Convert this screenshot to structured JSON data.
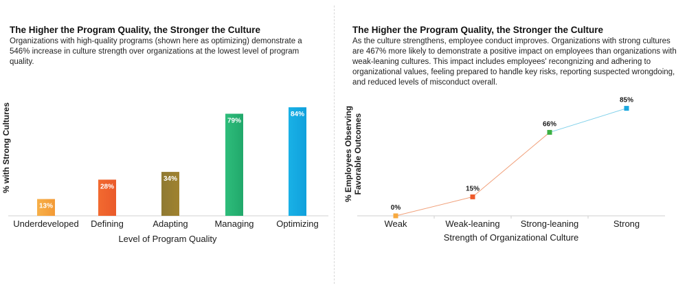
{
  "panels": {
    "left": {
      "title": "The Higher the Program Quality, the Stronger the Culture",
      "description": "Organizations with high-quality programs (shown here as optimizing) demonstrate a 546% increase in culture strength over organizations at the lowest level of program quality."
    },
    "right": {
      "title": "The Higher the Program Quality, the Stronger the Culture",
      "description": "As the culture strengthens, employee conduct improves. Organizations with strong cultures are 467% more likely to demonstrate a positive impact on employees than organizations with weak-leaning cultures. This impact includes employees' recongnizing and adhering to organizational values, feeling prepared to handle key risks, reporting suspected wrongdoing, and reduced levels of misconduct overall."
    }
  },
  "chart_data": [
    {
      "type": "bar",
      "title": "The Higher the Program Quality, the Stronger the Culture",
      "categories": [
        "Underdeveloped",
        "Defining",
        "Adapting",
        "Managing",
        "Optimizing"
      ],
      "values": [
        13,
        28,
        34,
        79,
        84
      ],
      "labels": [
        "13%",
        "28%",
        "34%",
        "79%",
        "84%"
      ],
      "colors": [
        [
          "#f7b04a",
          "#f39a35"
        ],
        [
          "#f26a30",
          "#ea5a2a"
        ],
        [
          "#8f7a33",
          "#a0822f"
        ],
        [
          "#2ebd7b",
          "#21a86b"
        ],
        [
          "#19b1e6",
          "#10a0dc"
        ]
      ],
      "xlabel": "Level of Program Quality",
      "ylabel": "% with Strong Cultures",
      "ylim": [
        0,
        100
      ],
      "grid": false
    },
    {
      "type": "line",
      "title": "The Higher the Program Quality, the Stronger the Culture",
      "categories": [
        "Weak",
        "Weak-leaning",
        "Strong-leaning",
        "Strong"
      ],
      "values": [
        0,
        15,
        66,
        85
      ],
      "labels": [
        "0%",
        "15%",
        "66%",
        "85%"
      ],
      "marker_colors": [
        "#f7a93f",
        "#ee5a2b",
        "#3cb043",
        "#1aa7df"
      ],
      "xlabel": "Strength of Organizational Culture",
      "ylabel": [
        "% Employees Observing",
        "Favorable Outcomes"
      ],
      "ylim": [
        0,
        100
      ],
      "grid": false
    }
  ]
}
